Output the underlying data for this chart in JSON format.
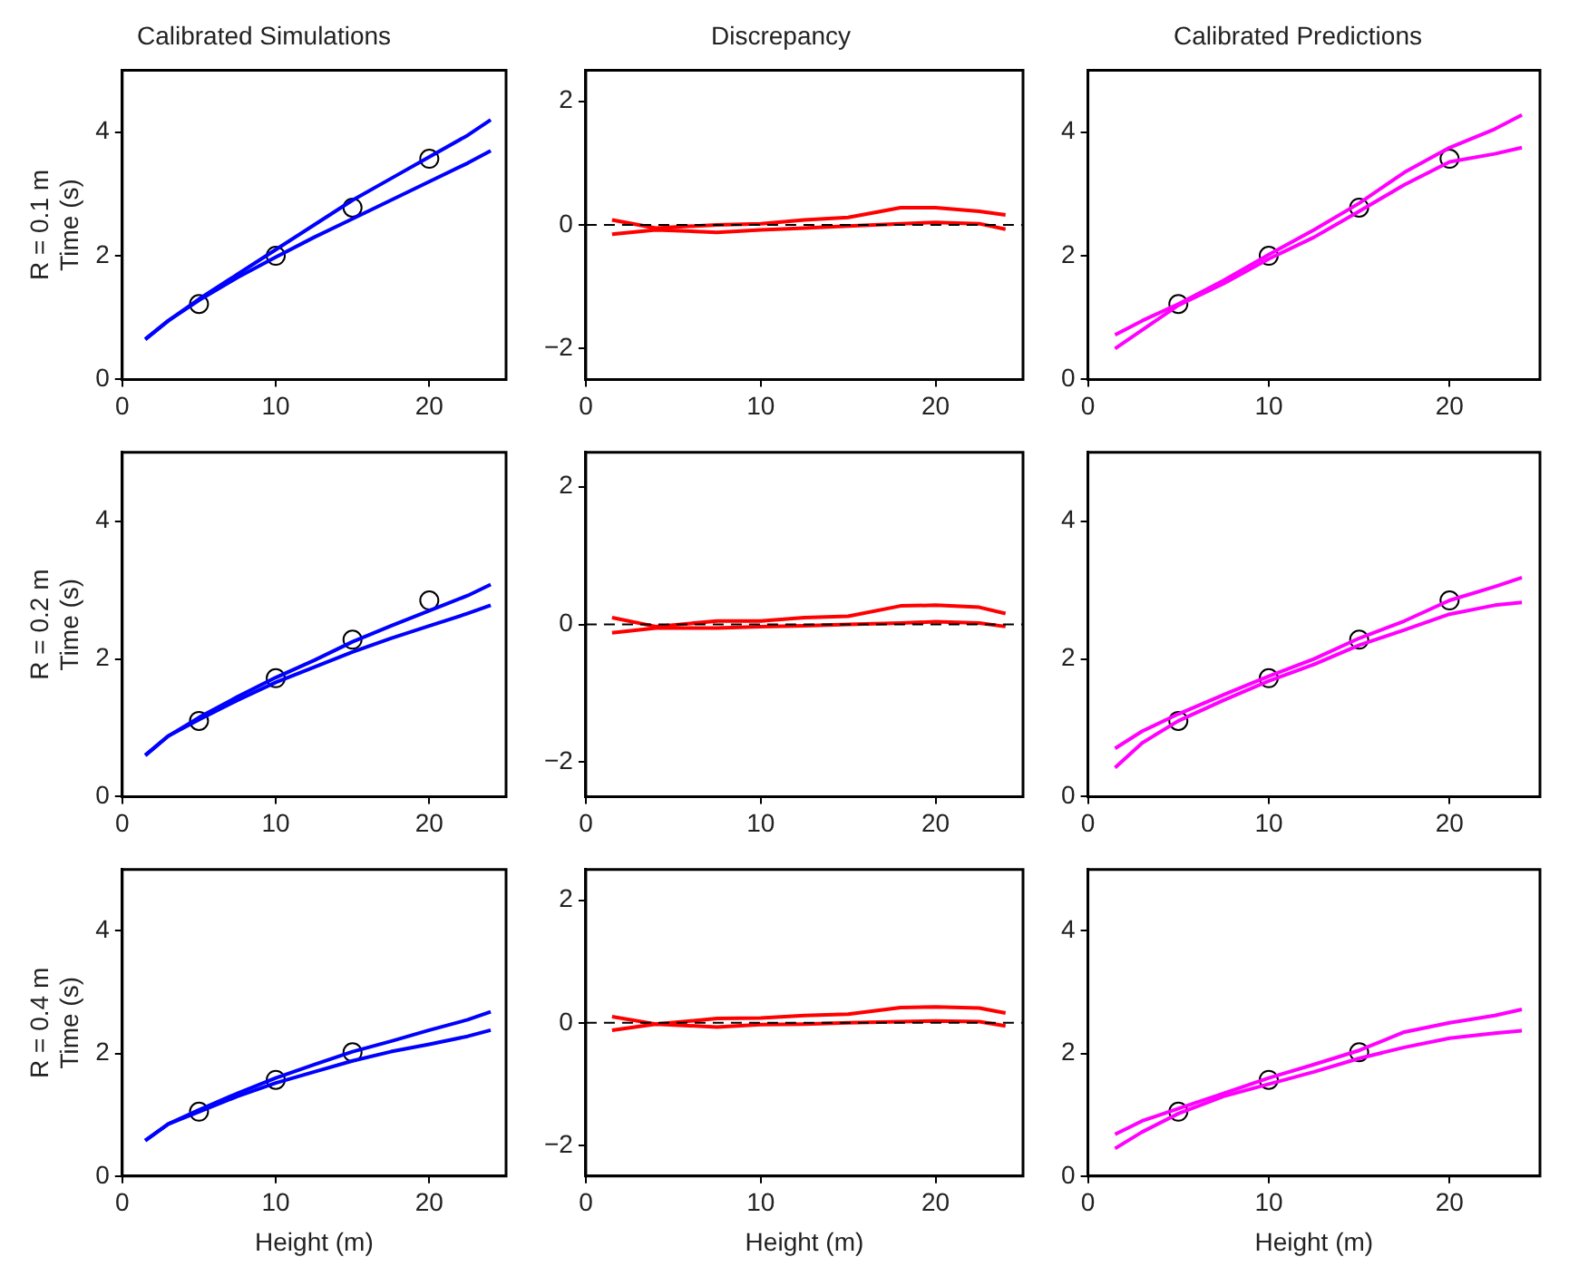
{
  "chart_data": [
    {
      "type": "line",
      "title": "Calibrated Simulations",
      "ylabel": "R = 0.1 m\nTime (s)",
      "xlim": [
        0,
        25
      ],
      "xticks": [
        0,
        10,
        20
      ],
      "ylim": [
        0,
        5
      ],
      "yticks": [
        0,
        2,
        4
      ],
      "grid": false,
      "legend": false,
      "series": [
        {
          "type": "line",
          "color": "#0000ff",
          "x": [
            1.5,
            3,
            5,
            7.5,
            10,
            12.5,
            15,
            17.5,
            20,
            22.5,
            24
          ],
          "values": [
            0.65,
            0.95,
            1.3,
            1.7,
            2.1,
            2.5,
            2.9,
            3.25,
            3.6,
            3.95,
            4.2
          ]
        },
        {
          "type": "line",
          "color": "#0000ff",
          "x": [
            1.5,
            3,
            5,
            7.5,
            10,
            12.5,
            15,
            17.5,
            20,
            22.5,
            24
          ],
          "values": [
            0.65,
            0.95,
            1.28,
            1.65,
            1.98,
            2.3,
            2.6,
            2.9,
            3.2,
            3.5,
            3.7
          ]
        },
        {
          "type": "scatter",
          "color": "#000000",
          "marker": "circle",
          "x": [
            5,
            10,
            15,
            20
          ],
          "values": [
            1.22,
            2.0,
            2.78,
            3.57
          ]
        }
      ]
    },
    {
      "type": "line",
      "title": "Discrepancy",
      "xlim": [
        0,
        25
      ],
      "xticks": [
        0,
        10,
        20
      ],
      "ylim": [
        -2.5,
        2.5
      ],
      "yticks": [
        -2,
        0,
        2
      ],
      "grid": false,
      "legend": false,
      "ref_lines": [
        {
          "axis": "y",
          "value": 0,
          "color": "#000000",
          "line_style": "dashed"
        }
      ],
      "series": [
        {
          "type": "line",
          "color": "#ff0000",
          "x": [
            1.5,
            4,
            7.5,
            10,
            12.5,
            15,
            18,
            20,
            22.5,
            24
          ],
          "values": [
            0.08,
            -0.05,
            0.0,
            0.02,
            0.08,
            0.12,
            0.28,
            0.28,
            0.22,
            0.16
          ]
        },
        {
          "type": "line",
          "color": "#ff0000",
          "x": [
            1.5,
            4,
            7.5,
            10,
            12.5,
            15,
            18,
            20,
            22.5,
            24
          ],
          "values": [
            -0.15,
            -0.08,
            -0.12,
            -0.08,
            -0.05,
            -0.02,
            0.02,
            0.04,
            0.02,
            -0.07
          ]
        }
      ]
    },
    {
      "type": "line",
      "title": "Calibrated Predictions",
      "xlim": [
        0,
        25
      ],
      "xticks": [
        0,
        10,
        20
      ],
      "ylim": [
        0,
        5
      ],
      "yticks": [
        0,
        2,
        4
      ],
      "grid": false,
      "legend": false,
      "series": [
        {
          "type": "line",
          "color": "#ff00ff",
          "x": [
            1.5,
            3,
            5,
            7.5,
            10,
            12.5,
            15,
            17.5,
            20,
            22.5,
            24
          ],
          "values": [
            0.72,
            0.95,
            1.22,
            1.6,
            2.02,
            2.42,
            2.85,
            3.35,
            3.75,
            4.05,
            4.28
          ]
        },
        {
          "type": "line",
          "color": "#ff00ff",
          "x": [
            1.5,
            3,
            5,
            7.5,
            10,
            12.5,
            15,
            17.5,
            20,
            22.5,
            24
          ],
          "values": [
            0.5,
            0.8,
            1.2,
            1.55,
            1.95,
            2.3,
            2.72,
            3.15,
            3.52,
            3.65,
            3.75
          ]
        },
        {
          "type": "scatter",
          "color": "#000000",
          "marker": "circle",
          "x": [
            5,
            10,
            15,
            20
          ],
          "values": [
            1.22,
            2.0,
            2.78,
            3.57
          ]
        }
      ]
    },
    {
      "type": "line",
      "ylabel": "R = 0.2 m\nTime (s)",
      "xlim": [
        0,
        25
      ],
      "xticks": [
        0,
        10,
        20
      ],
      "ylim": [
        0,
        5
      ],
      "yticks": [
        0,
        2,
        4
      ],
      "grid": false,
      "legend": false,
      "series": [
        {
          "type": "line",
          "color": "#0000ff",
          "x": [
            1.5,
            3,
            5,
            7.5,
            10,
            12.5,
            15,
            17.5,
            20,
            22.5,
            24
          ],
          "values": [
            0.6,
            0.88,
            1.15,
            1.45,
            1.73,
            1.98,
            2.25,
            2.48,
            2.7,
            2.92,
            3.08
          ]
        },
        {
          "type": "line",
          "color": "#0000ff",
          "x": [
            1.5,
            3,
            5,
            7.5,
            10,
            12.5,
            15,
            17.5,
            20,
            22.5,
            24
          ],
          "values": [
            0.6,
            0.88,
            1.12,
            1.4,
            1.66,
            1.88,
            2.1,
            2.3,
            2.48,
            2.66,
            2.78
          ]
        },
        {
          "type": "scatter",
          "color": "#000000",
          "marker": "circle",
          "x": [
            5,
            10,
            15,
            20
          ],
          "values": [
            1.1,
            1.72,
            2.28,
            2.85
          ]
        }
      ]
    },
    {
      "type": "line",
      "xlim": [
        0,
        25
      ],
      "xticks": [
        0,
        10,
        20
      ],
      "ylim": [
        -2.5,
        2.5
      ],
      "yticks": [
        -2,
        0,
        2
      ],
      "grid": false,
      "legend": false,
      "ref_lines": [
        {
          "axis": "y",
          "value": 0,
          "color": "#000000",
          "line_style": "dashed"
        }
      ],
      "series": [
        {
          "type": "line",
          "color": "#ff0000",
          "x": [
            1.5,
            4,
            7.5,
            10,
            12.5,
            15,
            18,
            20,
            22.5,
            24
          ],
          "values": [
            0.1,
            -0.03,
            0.05,
            0.05,
            0.1,
            0.12,
            0.27,
            0.28,
            0.25,
            0.16
          ]
        },
        {
          "type": "line",
          "color": "#ff0000",
          "x": [
            1.5,
            4,
            7.5,
            10,
            12.5,
            15,
            18,
            20,
            22.5,
            24
          ],
          "values": [
            -0.12,
            -0.05,
            -0.05,
            -0.03,
            -0.02,
            0.0,
            0.02,
            0.04,
            0.02,
            -0.03
          ]
        }
      ]
    },
    {
      "type": "line",
      "xlim": [
        0,
        25
      ],
      "xticks": [
        0,
        10,
        20
      ],
      "ylim": [
        0,
        5
      ],
      "yticks": [
        0,
        2,
        4
      ],
      "grid": false,
      "legend": false,
      "series": [
        {
          "type": "line",
          "color": "#ff00ff",
          "x": [
            1.5,
            3,
            5,
            7.5,
            10,
            12.5,
            15,
            17.5,
            20,
            22.5,
            24
          ],
          "values": [
            0.7,
            0.95,
            1.2,
            1.48,
            1.75,
            2.0,
            2.3,
            2.55,
            2.85,
            3.05,
            3.18
          ]
        },
        {
          "type": "line",
          "color": "#ff00ff",
          "x": [
            1.5,
            3,
            5,
            7.5,
            10,
            12.5,
            15,
            17.5,
            20,
            22.5,
            24
          ],
          "values": [
            0.42,
            0.78,
            1.1,
            1.4,
            1.68,
            1.92,
            2.2,
            2.42,
            2.65,
            2.78,
            2.82
          ]
        },
        {
          "type": "scatter",
          "color": "#000000",
          "marker": "circle",
          "x": [
            5,
            10,
            15,
            20
          ],
          "values": [
            1.1,
            1.72,
            2.28,
            2.85
          ]
        }
      ]
    },
    {
      "type": "line",
      "ylabel": "R = 0.4 m\nTime (s)",
      "xlabel": "Height (m)",
      "xlim": [
        0,
        25
      ],
      "xticks": [
        0,
        10,
        20
      ],
      "ylim": [
        0,
        5
      ],
      "yticks": [
        0,
        2,
        4
      ],
      "grid": false,
      "legend": false,
      "series": [
        {
          "type": "line",
          "color": "#0000ff",
          "x": [
            1.5,
            3,
            5,
            7.5,
            10,
            12.5,
            15,
            17.5,
            20,
            22.5,
            24
          ],
          "values": [
            0.58,
            0.85,
            1.08,
            1.35,
            1.6,
            1.82,
            2.03,
            2.2,
            2.38,
            2.55,
            2.68
          ]
        },
        {
          "type": "line",
          "color": "#0000ff",
          "x": [
            1.5,
            3,
            5,
            7.5,
            10,
            12.5,
            15,
            17.5,
            20,
            22.5,
            24
          ],
          "values": [
            0.58,
            0.85,
            1.05,
            1.3,
            1.52,
            1.7,
            1.88,
            2.03,
            2.15,
            2.28,
            2.38
          ]
        },
        {
          "type": "scatter",
          "color": "#000000",
          "marker": "circle",
          "x": [
            5,
            10,
            15
          ],
          "values": [
            1.05,
            1.57,
            2.02
          ]
        }
      ]
    },
    {
      "type": "line",
      "xlabel": "Height (m)",
      "xlim": [
        0,
        25
      ],
      "xticks": [
        0,
        10,
        20
      ],
      "ylim": [
        -2.5,
        2.5
      ],
      "yticks": [
        -2,
        0,
        2
      ],
      "grid": false,
      "legend": false,
      "ref_lines": [
        {
          "axis": "y",
          "value": 0,
          "color": "#000000",
          "line_style": "dashed"
        }
      ],
      "series": [
        {
          "type": "line",
          "color": "#ff0000",
          "x": [
            1.5,
            4,
            7.5,
            10,
            12.5,
            15,
            18,
            20,
            22.5,
            24
          ],
          "values": [
            0.1,
            -0.02,
            0.07,
            0.08,
            0.12,
            0.14,
            0.25,
            0.26,
            0.24,
            0.16
          ]
        },
        {
          "type": "line",
          "color": "#ff0000",
          "x": [
            1.5,
            4,
            7.5,
            10,
            12.5,
            15,
            18,
            20,
            22.5,
            24
          ],
          "values": [
            -0.12,
            -0.02,
            -0.07,
            -0.03,
            -0.02,
            0.0,
            0.02,
            0.03,
            0.02,
            -0.05
          ]
        }
      ]
    },
    {
      "type": "line",
      "xlabel": "Height (m)",
      "xlim": [
        0,
        25
      ],
      "xticks": [
        0,
        10,
        20
      ],
      "ylim": [
        0,
        5
      ],
      "yticks": [
        0,
        2,
        4
      ],
      "grid": false,
      "legend": false,
      "series": [
        {
          "type": "line",
          "color": "#ff00ff",
          "x": [
            1.5,
            3,
            5,
            7.5,
            10,
            12.5,
            15,
            17.5,
            20,
            22.5,
            24
          ],
          "values": [
            0.68,
            0.9,
            1.1,
            1.35,
            1.6,
            1.82,
            2.05,
            2.35,
            2.5,
            2.62,
            2.72
          ]
        },
        {
          "type": "line",
          "color": "#ff00ff",
          "x": [
            1.5,
            3,
            5,
            7.5,
            10,
            12.5,
            15,
            17.5,
            20,
            22.5,
            24
          ],
          "values": [
            0.45,
            0.72,
            1.02,
            1.3,
            1.5,
            1.7,
            1.92,
            2.1,
            2.25,
            2.33,
            2.37
          ]
        },
        {
          "type": "scatter",
          "color": "#000000",
          "marker": "circle",
          "x": [
            5,
            10,
            15
          ],
          "values": [
            1.05,
            1.57,
            2.02
          ]
        }
      ]
    }
  ]
}
